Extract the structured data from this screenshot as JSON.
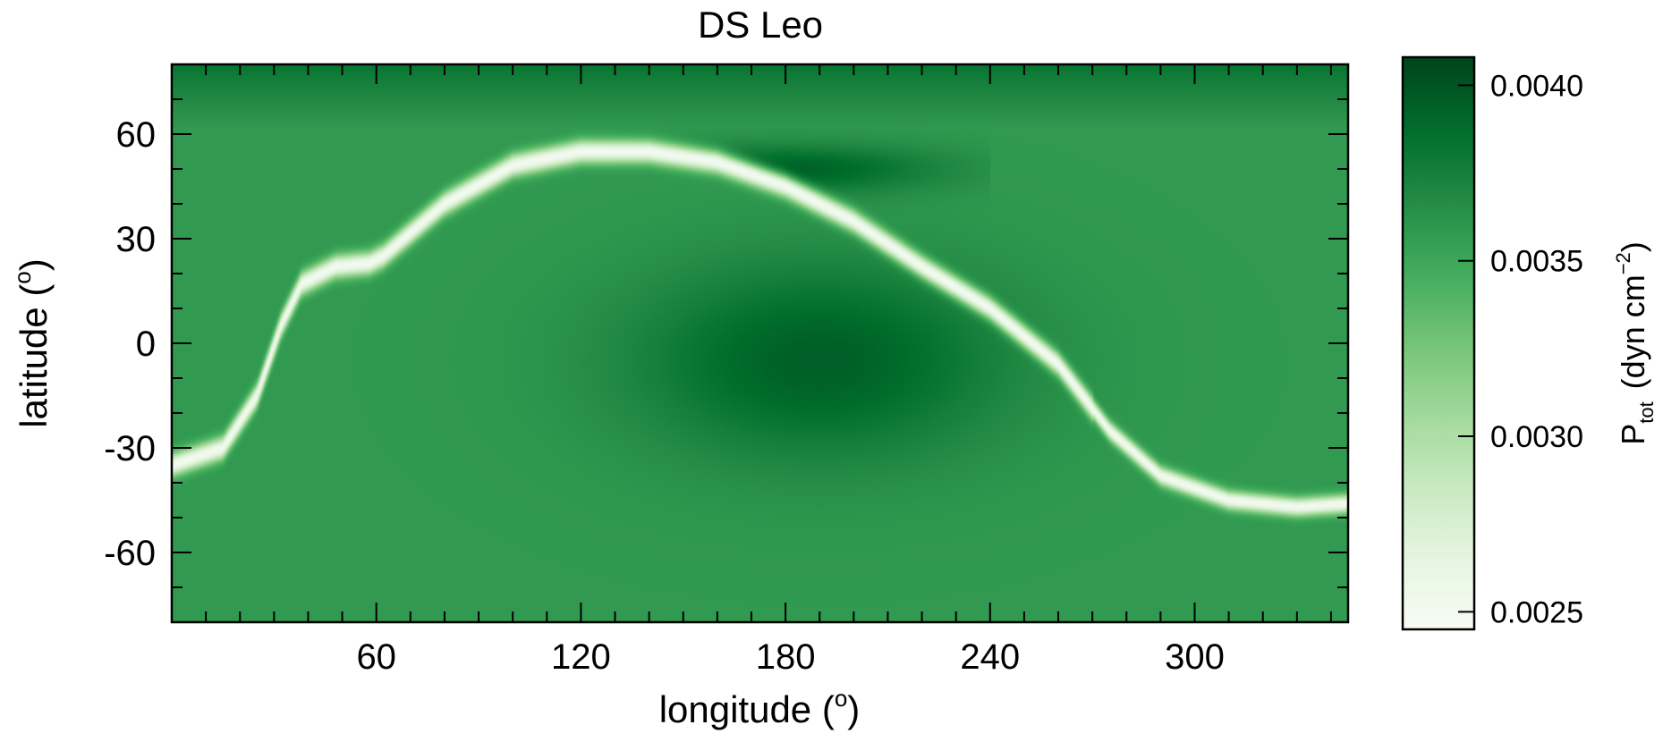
{
  "chart_data": {
    "type": "heatmap",
    "title": "DS Leo",
    "xlabel": "longitude (",
    "xlabel_sup": "o",
    "xlabel_close": ")",
    "ylabel": "latitude (",
    "ylabel_sup": "o",
    "ylabel_close": ")",
    "xlim": [
      0,
      345
    ],
    "ylim": [
      -80,
      80
    ],
    "x_ticks": [
      60,
      120,
      180,
      240,
      300
    ],
    "y_ticks": [
      60,
      30,
      0,
      -30,
      -60
    ],
    "x_minor_step": 10,
    "y_minor_step": 10,
    "grid": false,
    "colormap": "Greens",
    "colorbar": {
      "label_main": "P",
      "label_sub": "tot",
      "label_units": "(dyn cm",
      "label_units_sup": "−2",
      "label_units_close": ")",
      "range": [
        0.00245,
        0.00408
      ],
      "ticks": [
        0.004,
        0.0035,
        0.003,
        0.0025
      ],
      "tick_labels": [
        "0.0040",
        "0.0035",
        "0.0030",
        "0.0025"
      ]
    },
    "field": {
      "background_value": 0.00358,
      "north_value": 0.00382,
      "dark_core": {
        "lon": 190,
        "lat": -5,
        "value": 0.00395
      },
      "neutral_line_value": 0.0025,
      "neutral_line_trace": [
        [
          0,
          -35
        ],
        [
          15,
          -30
        ],
        [
          25,
          -15
        ],
        [
          32,
          5
        ],
        [
          38,
          17
        ],
        [
          48,
          22
        ],
        [
          58,
          23
        ],
        [
          62,
          25
        ],
        [
          68,
          30
        ],
        [
          80,
          40
        ],
        [
          100,
          51
        ],
        [
          120,
          55
        ],
        [
          140,
          55
        ],
        [
          160,
          52
        ],
        [
          180,
          45
        ],
        [
          200,
          35
        ],
        [
          220,
          22
        ],
        [
          240,
          10
        ],
        [
          260,
          -6
        ],
        [
          275,
          -25
        ],
        [
          290,
          -38
        ],
        [
          310,
          -45
        ],
        [
          330,
          -47
        ],
        [
          345,
          -46
        ]
      ]
    }
  }
}
